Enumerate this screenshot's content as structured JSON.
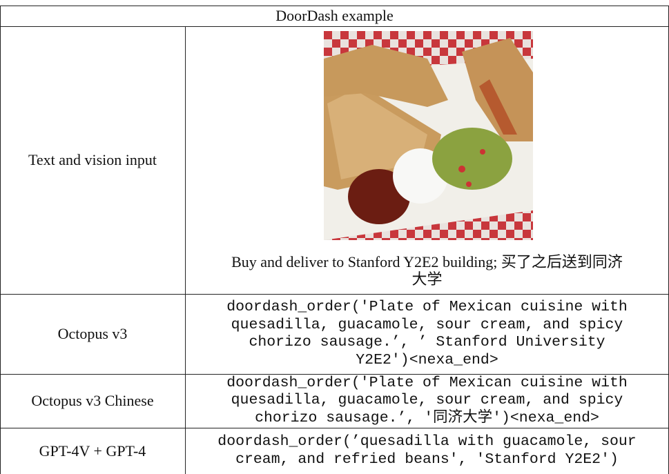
{
  "header": "DoorDash example",
  "rows": [
    {
      "label": "Text and vision input",
      "caption_lines": [
        "Buy and deliver to Stanford Y2E2 building; 买了之后送到同济",
        "大学"
      ]
    },
    {
      "label": "Octopus v3",
      "output_lines": [
        "doordash_order('Plate of Mexican cuisine with",
        "quesadilla, guacamole, sour cream, and spicy",
        "chorizo sausage.’, ’ Stanford University",
        "Y2E2')<nexa_end>"
      ]
    },
    {
      "label": "Octopus v3 Chinese",
      "output_lines": [
        "doordash_order('Plate of Mexican cuisine with",
        "quesadilla, guacamole, sour cream, and spicy",
        "chorizo sausage.’, '同济大学')<nexa_end>"
      ]
    },
    {
      "label": "GPT-4V + GPT-4",
      "output_lines": [
        "doordash_order(’quesadilla with guacamole, sour",
        "cream, and refried beans', 'Stanford Y2E2')"
      ]
    }
  ]
}
